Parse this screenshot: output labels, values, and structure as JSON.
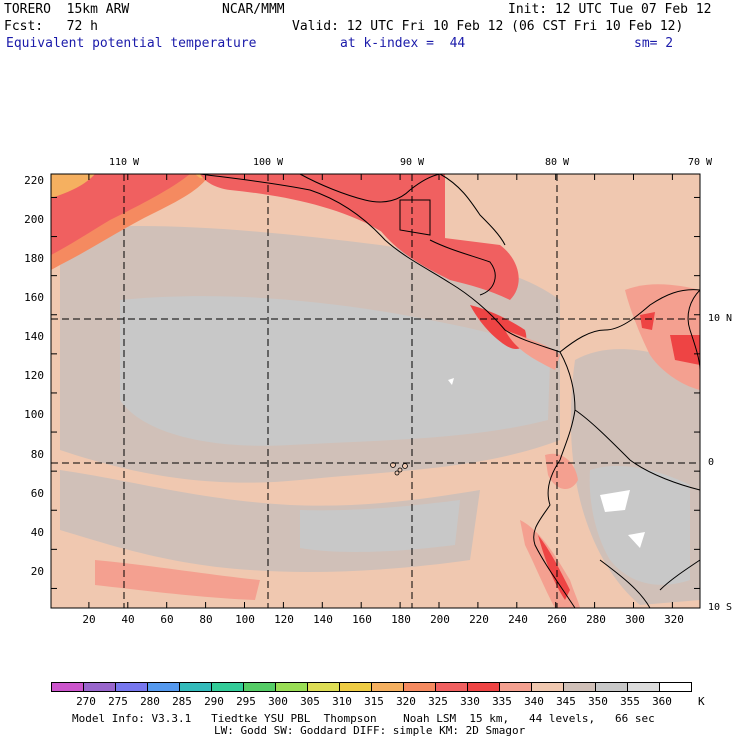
{
  "header": {
    "model": "TORERO  15km ARW",
    "center": "NCAR/MMM",
    "init": "Init: 12 UTC Tue 07 Feb 12",
    "fcst": "Fcst:   72 h",
    "valid": "Valid: 12 UTC Fri 10 Feb 12 (06 CST Fri 10 Feb 12)",
    "field": "Equivalent potential temperature",
    "level": "at k-index =  44",
    "smooth": "sm= 2"
  },
  "map": {
    "top_lon_labels": [
      "110 W",
      "100 W",
      "90 W",
      "80 W",
      "70 W"
    ],
    "right_lat_labels": [
      "10 N",
      "0",
      "10 S"
    ],
    "y_ticks": [
      "220",
      "200",
      "180",
      "160",
      "140",
      "120",
      "100",
      "80",
      "60",
      "40",
      "20"
    ],
    "x_ticks": [
      "20",
      "40",
      "60",
      "80",
      "100",
      "120",
      "140",
      "160",
      "180",
      "200",
      "220",
      "240",
      "260",
      "280",
      "300",
      "320"
    ]
  },
  "colorbar": {
    "labels": [
      "270",
      "275",
      "280",
      "285",
      "290",
      "295",
      "300",
      "305",
      "310",
      "315",
      "320",
      "325",
      "330",
      "335",
      "340",
      "345",
      "350",
      "355",
      "360"
    ],
    "unit": "K",
    "colors": [
      "#cc55cc",
      "#9966cc",
      "#7777ee",
      "#5599ee",
      "#33bbbb",
      "#33cc99",
      "#55cc66",
      "#99dd55",
      "#dddd55",
      "#eecc44",
      "#f5b060",
      "#f58a60",
      "#f06060",
      "#ee4444",
      "#f4a090",
      "#f0c8b0",
      "#d0c0b8",
      "#c8c8c8",
      "#dcdcdc",
      "#ffffff"
    ]
  },
  "footer": {
    "line1": "Model Info: V3.3.1   Tiedtke YSU PBL  Thompson    Noah LSM  15 km,   44 levels,   66 sec",
    "line2": "LW: Godd SW: Goddard DIFF: simple KM: 2D Smagor"
  }
}
